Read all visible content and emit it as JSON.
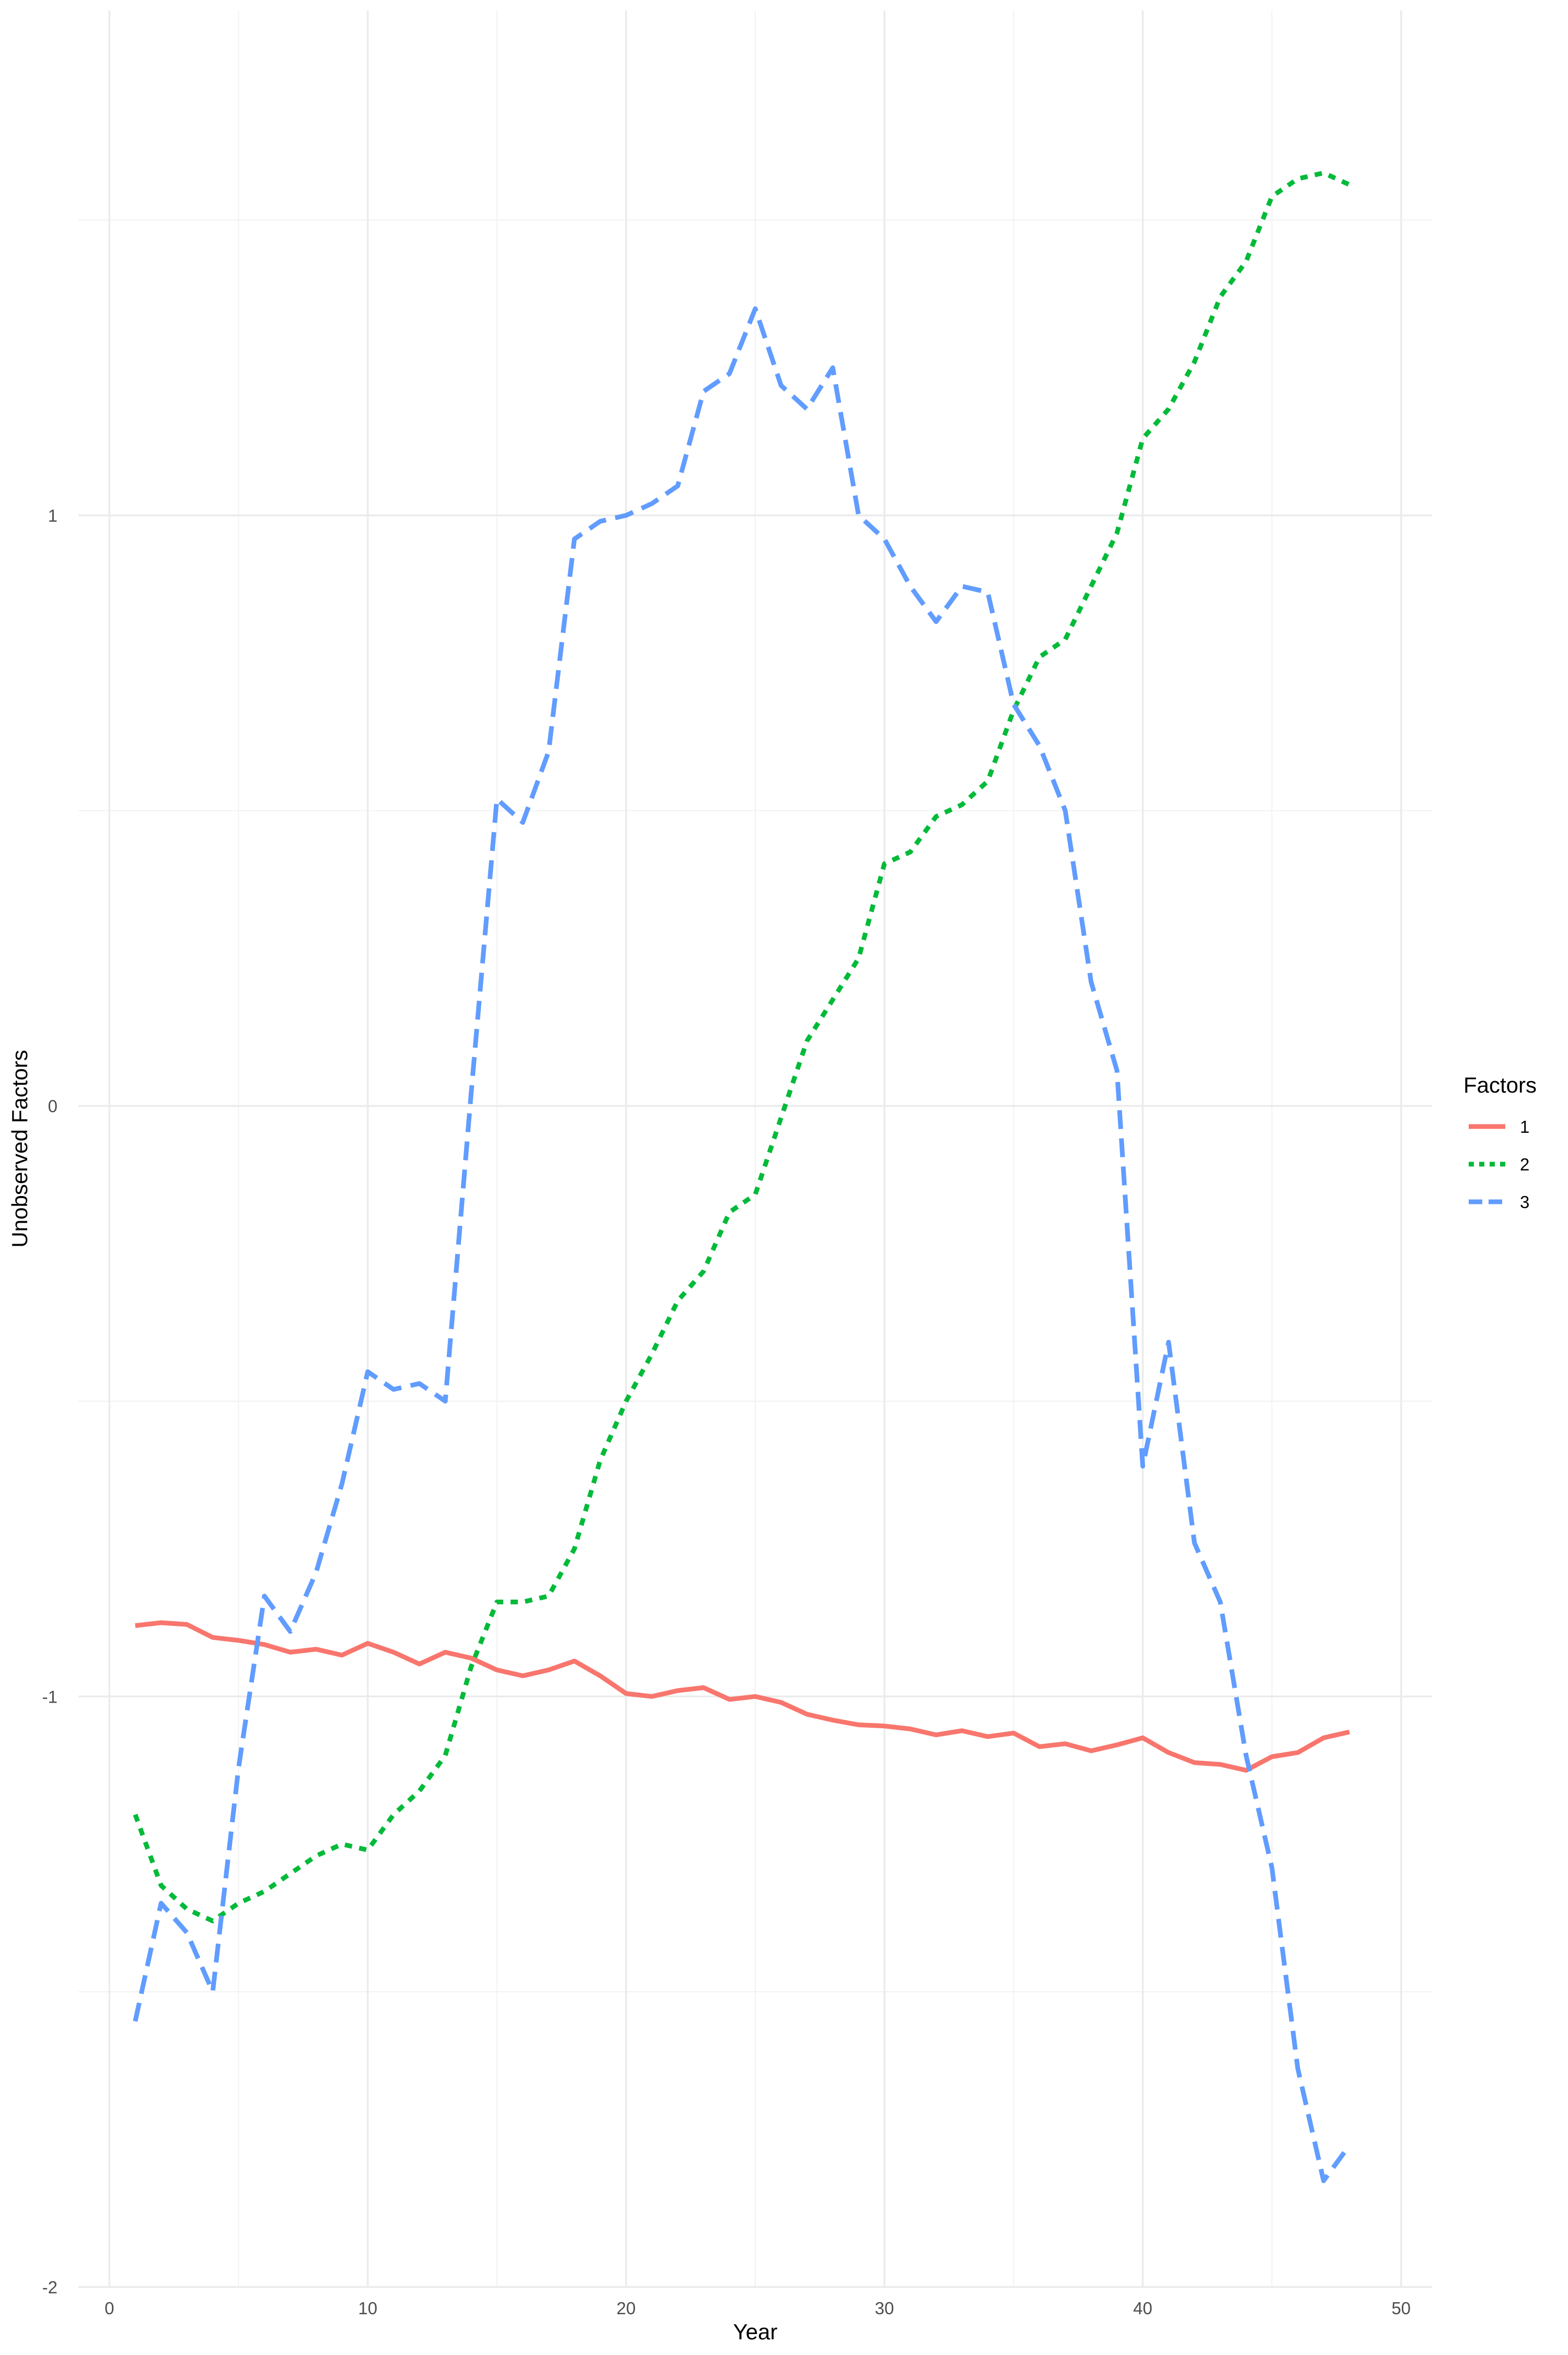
{
  "chart_data": {
    "type": "line",
    "title": "",
    "xlabel": "Year",
    "ylabel": "Unobserved Factors",
    "xlim": [
      0,
      50
    ],
    "ylim": [
      -2,
      1.75
    ],
    "x_ticks": [
      0,
      10,
      20,
      30,
      40,
      50
    ],
    "x_tick_labels": [
      "0",
      "10",
      "20",
      "30",
      "40",
      "50"
    ],
    "y_ticks": [
      -2,
      -1,
      0,
      1
    ],
    "y_tick_labels": [
      "-2",
      "-1",
      "0",
      "1"
    ],
    "grid": true,
    "legend": {
      "title": "Factors",
      "placement": "right"
    },
    "x": [
      1,
      2,
      3,
      4,
      5,
      6,
      7,
      8,
      9,
      10,
      11,
      12,
      13,
      14,
      15,
      16,
      17,
      18,
      19,
      20,
      21,
      22,
      23,
      24,
      25,
      26,
      27,
      28,
      29,
      30,
      31,
      32,
      33,
      34,
      35,
      36,
      37,
      38,
      39,
      40,
      41,
      42,
      43,
      44,
      45,
      46,
      47,
      48
    ],
    "series": [
      {
        "name": "1",
        "color": "#F8766D",
        "linetype": "solid",
        "values": [
          -0.88,
          -0.875,
          -0.878,
          -0.9,
          -0.905,
          -0.912,
          -0.925,
          -0.92,
          -0.93,
          -0.91,
          -0.925,
          -0.945,
          -0.925,
          -0.935,
          -0.955,
          -0.965,
          -0.955,
          -0.94,
          -0.965,
          -0.995,
          -1.0,
          -0.99,
          -0.985,
          -1.005,
          -1.0,
          -1.01,
          -1.03,
          -1.04,
          -1.048,
          -1.05,
          -1.055,
          -1.065,
          -1.058,
          -1.068,
          -1.062,
          -1.085,
          -1.08,
          -1.092,
          -1.082,
          -1.07,
          -1.095,
          -1.112,
          -1.115,
          -1.125,
          -1.102,
          -1.095,
          -1.07,
          -1.06
        ]
      },
      {
        "name": "2",
        "color": "#00BA38",
        "linetype": "dotted",
        "values": [
          -1.2,
          -1.32,
          -1.36,
          -1.38,
          -1.35,
          -1.33,
          -1.3,
          -1.27,
          -1.25,
          -1.26,
          -1.2,
          -1.16,
          -1.1,
          -0.95,
          -0.84,
          -0.84,
          -0.83,
          -0.75,
          -0.6,
          -0.5,
          -0.42,
          -0.33,
          -0.28,
          -0.18,
          -0.15,
          -0.02,
          0.11,
          0.18,
          0.25,
          0.41,
          0.43,
          0.49,
          0.51,
          0.55,
          0.67,
          0.76,
          0.79,
          0.88,
          0.97,
          1.13,
          1.18,
          1.26,
          1.37,
          1.43,
          1.54,
          1.57,
          1.58,
          1.56
        ]
      },
      {
        "name": "3",
        "color": "#619CFF",
        "linetype": "dashed",
        "values": [
          -1.55,
          -1.35,
          -1.4,
          -1.5,
          -1.12,
          -0.83,
          -0.89,
          -0.79,
          -0.64,
          -0.45,
          -0.48,
          -0.47,
          -0.5,
          0.02,
          0.52,
          0.48,
          0.6,
          0.96,
          0.99,
          1.0,
          1.02,
          1.05,
          1.21,
          1.24,
          1.35,
          1.22,
          1.18,
          1.25,
          1.0,
          0.96,
          0.88,
          0.82,
          0.88,
          0.87,
          0.68,
          0.61,
          0.5,
          0.21,
          0.06,
          -0.61,
          -0.4,
          -0.74,
          -0.84,
          -1.1,
          -1.29,
          -1.63,
          -1.82,
          -1.76
        ]
      }
    ]
  }
}
